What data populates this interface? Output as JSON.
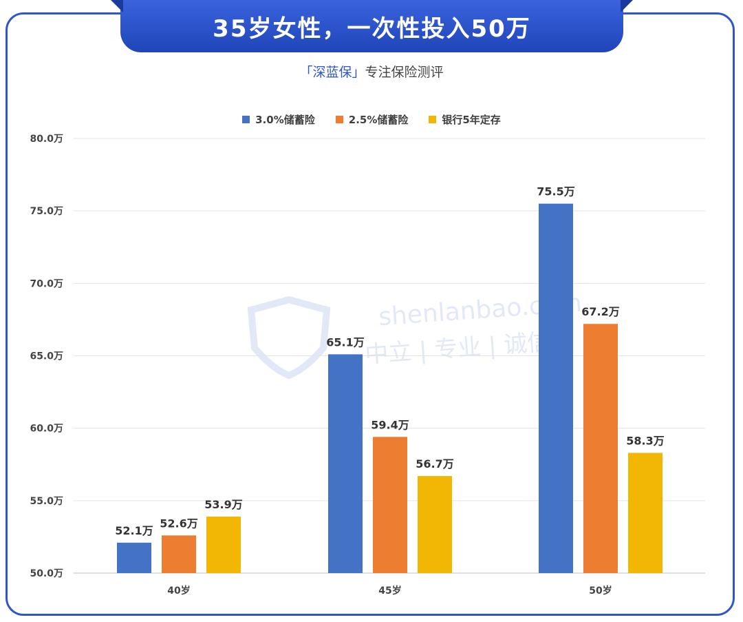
{
  "header": {
    "title": "35岁女性，一次性投入50万",
    "brand": "「深蓝保」",
    "tagline": "专注保险测评"
  },
  "watermark": {
    "logo_text": "深蓝保",
    "url": "shenlanbao.com",
    "motto": "中立 | 专业 | 诚信"
  },
  "chart_data": {
    "type": "bar",
    "categories": [
      "40岁",
      "45岁",
      "50岁"
    ],
    "series": [
      {
        "name": "3.0%储蓄险",
        "color": "#4472c4",
        "values": [
          52.1,
          65.1,
          75.5
        ]
      },
      {
        "name": "2.5%储蓄险",
        "color": "#ed7d31",
        "values": [
          52.6,
          59.4,
          67.2
        ]
      },
      {
        "name": "银行5年定存",
        "color": "#f2b705",
        "values": [
          53.9,
          56.7,
          58.3
        ]
      }
    ],
    "value_suffix": "万",
    "ylim": [
      50,
      80
    ],
    "yticks": [
      "50.0万",
      "55.0万",
      "60.0万",
      "65.0万",
      "70.0万",
      "75.0万",
      "80.0万"
    ],
    "ytick_values": [
      50,
      55,
      60,
      65,
      70,
      75,
      80
    ],
    "grid": true,
    "legend": "top-center"
  }
}
